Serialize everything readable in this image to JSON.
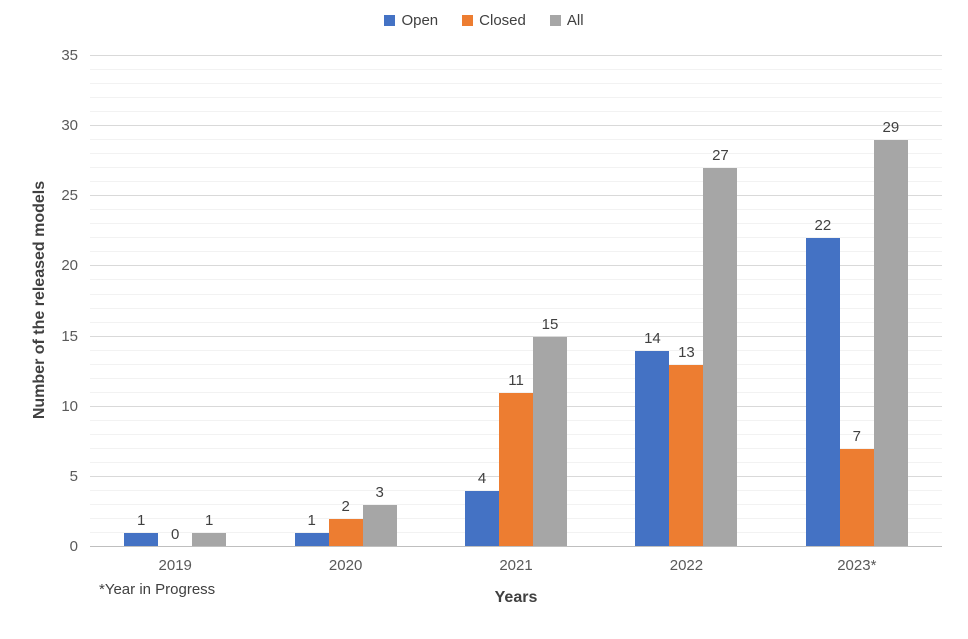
{
  "chart_data": {
    "type": "bar",
    "title": "",
    "categories": [
      "2019",
      "2020",
      "2021",
      "2022",
      "2023*"
    ],
    "series": [
      {
        "name": "Open",
        "color": "#4472C4",
        "values": [
          1,
          1,
          4,
          14,
          22
        ]
      },
      {
        "name": "Closed",
        "color": "#ED7D31",
        "values": [
          0,
          2,
          11,
          13,
          7
        ]
      },
      {
        "name": "All",
        "color": "#A6A6A6",
        "values": [
          1,
          3,
          15,
          27,
          29
        ]
      }
    ],
    "xlabel": "Years",
    "ylabel": "Number of the released models",
    "ylim": [
      0,
      35
    ],
    "ytick_step": 5,
    "yticks": [
      0,
      5,
      10,
      15,
      20,
      25,
      30,
      35
    ],
    "minor_gridline_unit": 1,
    "grid": true,
    "data_labels": true,
    "legend_position": "top",
    "footnote": "*Year in Progress",
    "colors": {
      "open": "#4472C4",
      "closed": "#ED7D31",
      "all": "#A6A6A6",
      "text": "#404040",
      "axis_text": "#595959",
      "major_gridline": "#d9d9d9",
      "minor_gridline": "#f2f2f2",
      "axis_line": "#bfbfbf",
      "background": "#ffffff"
    }
  }
}
